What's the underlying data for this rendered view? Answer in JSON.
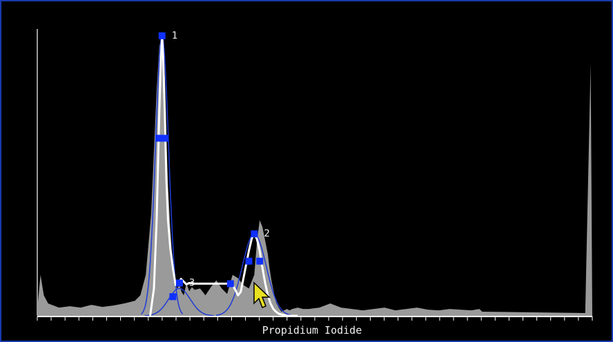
{
  "chart_data": {
    "type": "area",
    "xlabel": "Propidium Iodide",
    "ylabel": "",
    "xlim": [
      0,
      1023
    ],
    "ylim": [
      0,
      420
    ],
    "grid": false,
    "colors": {
      "histogram": "#9a9a9a",
      "fit": "#ffffff",
      "components": "#1f3bd6",
      "handles": "#1030ff",
      "axis": "#ffffff",
      "border": "#1a3ab0"
    },
    "histogram": {
      "x": [
        0,
        6,
        12,
        20,
        30,
        40,
        60,
        80,
        100,
        120,
        140,
        160,
        180,
        190,
        200,
        210,
        215,
        220,
        225,
        230,
        235,
        238,
        241,
        245,
        250,
        255,
        258,
        262,
        266,
        270,
        275,
        280,
        285,
        290,
        300,
        310,
        320,
        330,
        340,
        350,
        360,
        370,
        380,
        390,
        400,
        405,
        410,
        415,
        420,
        425,
        428,
        432,
        436,
        440,
        445,
        450,
        455,
        460,
        465,
        470,
        480,
        490,
        500,
        520,
        540,
        560,
        580,
        600,
        620,
        640,
        660,
        680,
        700,
        720,
        740,
        760,
        780,
        800,
        815,
        820,
        1010,
        1020,
        1023
      ],
      "y": [
        10,
        60,
        30,
        18,
        15,
        12,
        14,
        12,
        16,
        13,
        15,
        18,
        22,
        30,
        60,
        150,
        240,
        330,
        395,
        410,
        350,
        260,
        190,
        130,
        70,
        45,
        40,
        46,
        35,
        30,
        48,
        36,
        42,
        38,
        40,
        30,
        42,
        52,
        40,
        32,
        60,
        55,
        45,
        40,
        60,
        110,
        140,
        130,
        110,
        90,
        70,
        50,
        35,
        20,
        12,
        6,
        8,
        10,
        8,
        10,
        12,
        10,
        10,
        12,
        18,
        12,
        10,
        8,
        10,
        12,
        8,
        10,
        12,
        9,
        8,
        10,
        9,
        8,
        10,
        6,
        4,
        370,
        0
      ]
    },
    "fit_curve": {
      "x": [
        208,
        215,
        220,
        225,
        228,
        230,
        232,
        235,
        238,
        241,
        245,
        250,
        255,
        260,
        265,
        270,
        275,
        280,
        290,
        300,
        310,
        320,
        330,
        340,
        350,
        360,
        365,
        370,
        375,
        380,
        385,
        390,
        395,
        398,
        400,
        405,
        410,
        415,
        420,
        425,
        430,
        435,
        440,
        445,
        450,
        455,
        460,
        470,
        480
      ],
      "y": [
        0,
        40,
        140,
        300,
        380,
        410,
        380,
        300,
        200,
        140,
        100,
        70,
        45,
        48,
        54,
        50,
        46,
        48,
        47,
        47,
        47,
        47,
        47,
        47,
        47,
        45,
        38,
        30,
        35,
        55,
        75,
        95,
        112,
        118,
        120,
        112,
        95,
        70,
        48,
        30,
        18,
        10,
        6,
        3,
        2,
        1,
        0,
        0,
        0
      ]
    },
    "components": [
      {
        "name": "1",
        "center": 230,
        "peak": 410
      },
      {
        "name": "2",
        "center": 400,
        "peak": 120
      },
      {
        "name": "3",
        "center": 262,
        "peak": 40
      }
    ],
    "peak_labels": [
      "1",
      "2",
      "3"
    ]
  }
}
